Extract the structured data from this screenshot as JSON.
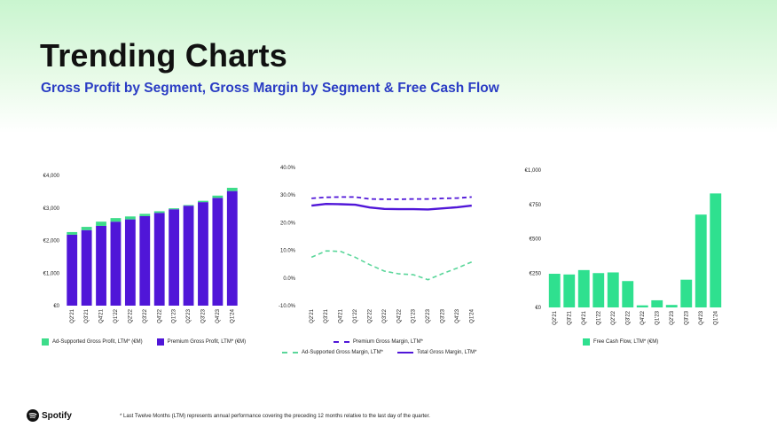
{
  "header": {
    "title": "Trending Charts",
    "subtitle": "Gross Profit by Segment, Gross Margin by Segment & Free Cash Flow"
  },
  "colors": {
    "premium": "#5016d8",
    "ad_supported": "#3ddc8a",
    "fcf": "#2fe08f",
    "ad_margin_line": "#5ad69a"
  },
  "chart_data": [
    {
      "type": "bar",
      "stacked": true,
      "categories": [
        "Q2'21",
        "Q3'21",
        "Q4'21",
        "Q1'22",
        "Q2'22",
        "Q3'22",
        "Q4'22",
        "Q1'23",
        "Q2'23",
        "Q3'23",
        "Q4'23",
        "Q1'24"
      ],
      "series": [
        {
          "name": "Premium Gross Profit, LTM* (€M)",
          "values": [
            2180,
            2320,
            2450,
            2580,
            2650,
            2750,
            2850,
            2960,
            3070,
            3180,
            3310,
            3520
          ]
        },
        {
          "name": "Ad-Supported Gross Profit, LTM* (€M)",
          "values": [
            80,
            100,
            130,
            110,
            90,
            70,
            50,
            30,
            20,
            40,
            70,
            100
          ]
        }
      ],
      "y_ticks": [
        "€0",
        "€1,000",
        "€2,000",
        "€3,000",
        "€4,000"
      ],
      "ylim": [
        0,
        4000
      ],
      "legend": [
        "Ad-Supported Gross Profit, LTM* (€M)",
        "Premium Gross Profit, LTM* (€M)"
      ]
    },
    {
      "type": "line",
      "categories": [
        "Q2'21",
        "Q3'21",
        "Q4'21",
        "Q1'22",
        "Q2'22",
        "Q3'22",
        "Q4'22",
        "Q1'23",
        "Q2'23",
        "Q3'23",
        "Q4'23",
        "Q1'24"
      ],
      "series": [
        {
          "name": "Premium Gross Margin, LTM*",
          "values": [
            28.8,
            29.2,
            29.3,
            29.3,
            28.6,
            28.5,
            28.5,
            28.6,
            28.6,
            28.8,
            28.9,
            29.3
          ]
        },
        {
          "name": "Ad-Supported Gross Margin, LTM*",
          "values": [
            7.5,
            9.8,
            9.6,
            7.5,
            4.8,
            2.5,
            1.5,
            1.2,
            -0.6,
            1.6,
            3.6,
            5.8
          ]
        },
        {
          "name": "Total Gross Margin, LTM*",
          "values": [
            26.2,
            26.8,
            26.7,
            26.5,
            25.5,
            25.0,
            24.9,
            24.9,
            24.8,
            25.2,
            25.6,
            26.2
          ]
        }
      ],
      "y_ticks": [
        "-10.0%",
        "0.0%",
        "10.0%",
        "20.0%",
        "30.0%",
        "40.0%"
      ],
      "ylim": [
        -10,
        40
      ],
      "legend": [
        "Premium Gross Margin, LTM*",
        "Ad-Supported Gross Margin, LTM*",
        "Total Gross Margin, LTM*"
      ]
    },
    {
      "type": "bar",
      "categories": [
        "Q2'21",
        "Q3'21",
        "Q4'21",
        "Q1'22",
        "Q2'22",
        "Q3'22",
        "Q4'22",
        "Q1'23",
        "Q2'23",
        "Q3'23",
        "Q4'23",
        "Q1'24"
      ],
      "series": [
        {
          "name": "Free Cash Flow, LTM* (€M)",
          "values": [
            245,
            240,
            272,
            250,
            255,
            192,
            15,
            52,
            18,
            202,
            676,
            830
          ]
        }
      ],
      "y_ticks": [
        "€0",
        "€250",
        "€500",
        "€750",
        "€1,000"
      ],
      "ylim": [
        0,
        1000
      ],
      "legend": [
        "Free Cash Flow, LTM* (€M)"
      ]
    }
  ],
  "footer": {
    "brand": "Spotify",
    "footnote": "* Last Twelve Months (LTM) represents annual performance covering the preceding 12 months relative to the last day of the quarter."
  }
}
